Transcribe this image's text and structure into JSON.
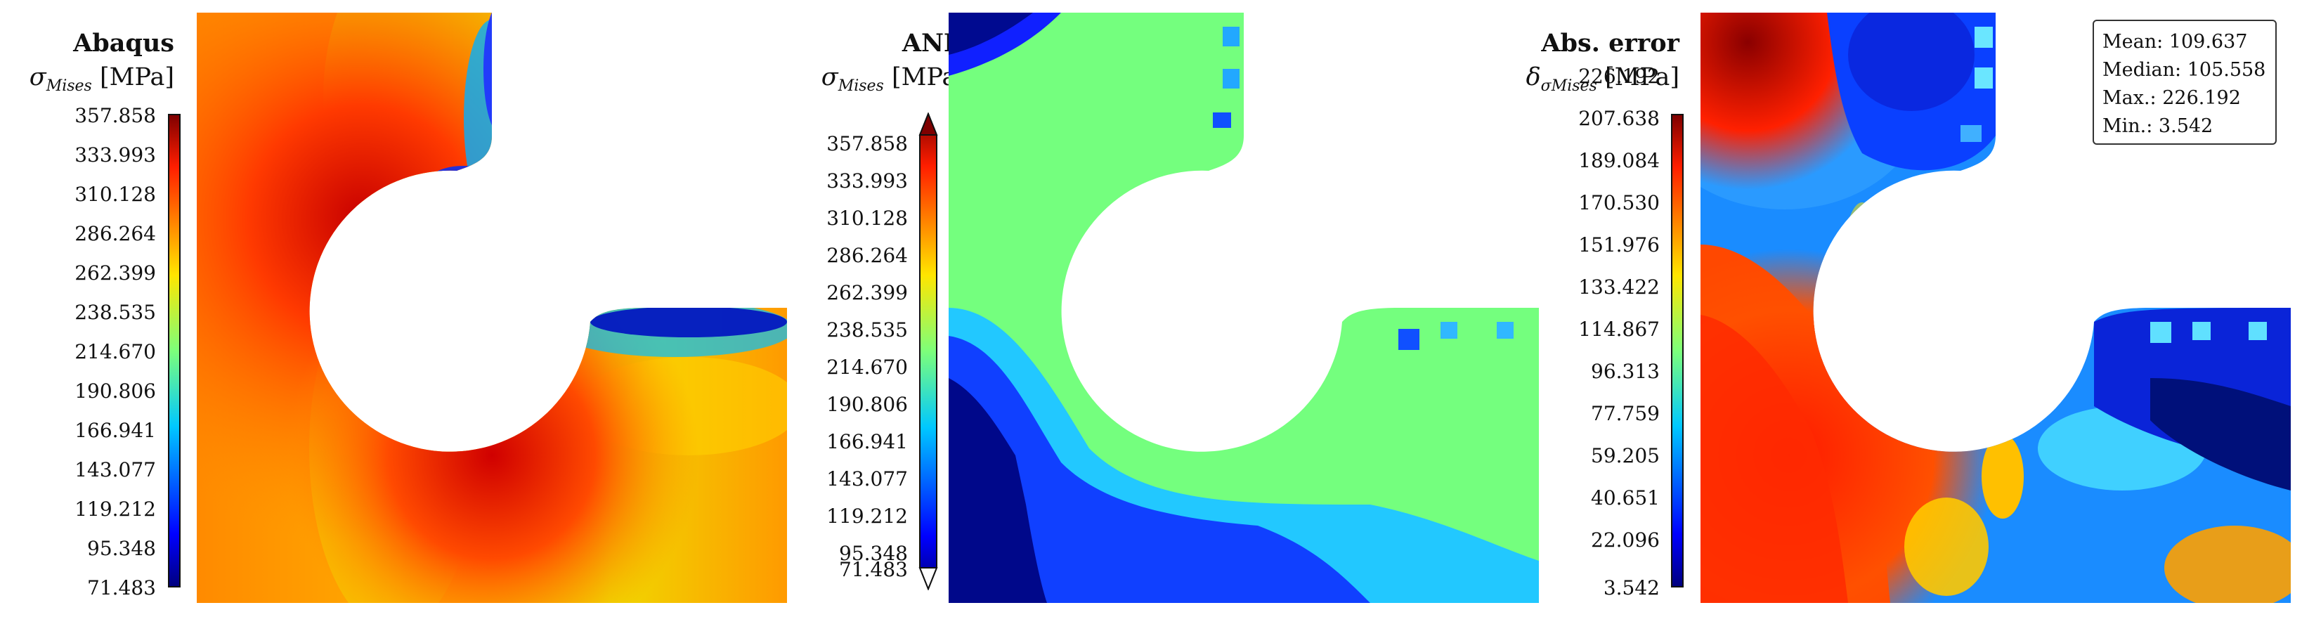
{
  "panels": [
    {
      "title": "Abaqus",
      "symbol": "σ",
      "subscript": "Mises",
      "unit": "[MPa]",
      "ticks": [
        "357.858",
        "333.993",
        "310.128",
        "286.264",
        "262.399",
        "238.535",
        "214.670",
        "190.806",
        "166.941",
        "143.077",
        "119.212",
        "95.348",
        "71.483"
      ]
    },
    {
      "title": "ANN",
      "symbol": "σ",
      "subscript": "Mises",
      "unit": "[MPa]",
      "ticks": [
        "357.858",
        "333.993",
        "310.128",
        "286.264",
        "262.399",
        "238.535",
        "214.670",
        "190.806",
        "166.941",
        "143.077",
        "119.212",
        "95.348",
        "71.483"
      ]
    },
    {
      "title": "Abs. error",
      "symbol": "δ",
      "subscript": "σMises",
      "unit": "[MPa]",
      "ticks": [
        "226.192",
        "207.638",
        "189.084",
        "170.530",
        "151.976",
        "133.422",
        "114.867",
        "96.313",
        "77.759",
        "59.205",
        "40.651",
        "22.096",
        "3.542"
      ]
    }
  ],
  "stats": {
    "mean": "Mean: 109.637",
    "median": "Median: 105.558",
    "max": "Max.: 226.192",
    "min": "Min.: 3.542"
  },
  "colormap": [
    "#00007f",
    "#0000ff",
    "#0080ff",
    "#00e5ff",
    "#7dff7a",
    "#e5ff13",
    "#ff9400",
    "#ff1e00",
    "#7f0000"
  ]
}
